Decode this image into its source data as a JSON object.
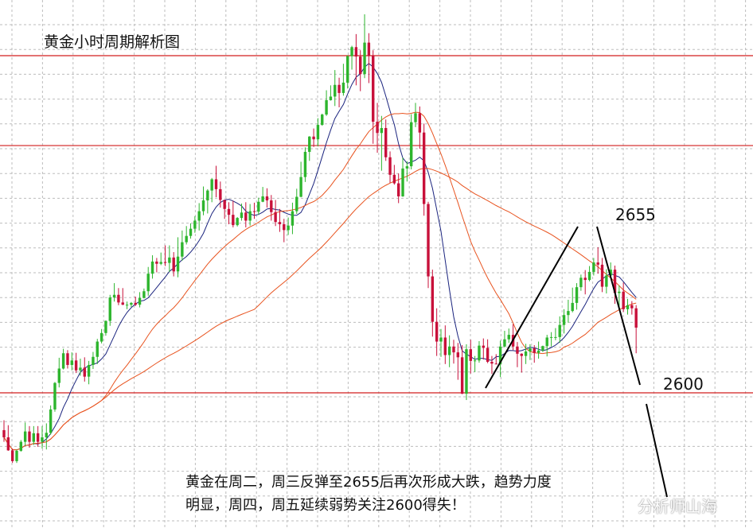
{
  "chart_data": {
    "type": "candlestick",
    "title": "黄金小时周期解析图",
    "levels": [
      {
        "label": "",
        "value": 2675
      },
      {
        "label": "2655",
        "value": 2655
      },
      {
        "label": "2600",
        "value": 2600
      }
    ],
    "ylim": [
      2580,
      2700
    ],
    "grid": true,
    "annotation_line1": "黄金在周二，周三反弹至2655后再次形成大跌，趋势力度",
    "annotation_line2": "明显，周四，周五延续弱势关注2600得失！",
    "watermark": "分析师山海",
    "colors": {
      "up": "#2db52d",
      "down": "#c8103a",
      "level": "#d21e1e",
      "ma_fast": "#1a237e",
      "ma_mid": "#1a237e",
      "ma_slow": "#e8531f",
      "grid": "#bdbdbd"
    },
    "ohlc": [
      [
        2591.7,
        2590.1,
        2593.9,
        2589.1
      ],
      [
        2590.1,
        2587.2,
        2592.8,
        2587.1
      ],
      [
        2587.2,
        2584.8,
        2587.6,
        2584.4
      ],
      [
        2584.8,
        2587.1,
        2587.4,
        2584.4
      ],
      [
        2587.1,
        2589.1,
        2589.5,
        2586.9
      ],
      [
        2589.1,
        2591.4,
        2593.4,
        2588.2
      ],
      [
        2591.4,
        2589.1,
        2592.6,
        2587.8
      ],
      [
        2589.1,
        2591.0,
        2592.6,
        2588.4
      ],
      [
        2591.0,
        2589.1,
        2592.6,
        2588.0
      ],
      [
        2589.1,
        2590.1,
        2592.6,
        2587.6
      ],
      [
        2590.1,
        2591.1,
        2593.2,
        2587.4
      ],
      [
        2591.1,
        2596.3,
        2597.2,
        2590.7
      ],
      [
        2596.3,
        2602.2,
        2602.4,
        2595.8
      ],
      [
        2602.2,
        2605.4,
        2607.8,
        2601.2
      ],
      [
        2605.4,
        2608.8,
        2609.8,
        2605.2
      ],
      [
        2608.8,
        2606.2,
        2609.5,
        2605.4
      ],
      [
        2606.2,
        2607.2,
        2609.0,
        2605.0
      ],
      [
        2607.2,
        2605.0,
        2608.9,
        2604.4
      ],
      [
        2605.0,
        2605.6,
        2607.6,
        2603.8
      ],
      [
        2605.6,
        2603.6,
        2607.9,
        2602.5
      ],
      [
        2603.6,
        2606.2,
        2607.1,
        2601.9
      ],
      [
        2606.2,
        2608.0,
        2609.1,
        2605.3
      ],
      [
        2608.0,
        2611.4,
        2612.0,
        2606.4
      ],
      [
        2611.4,
        2613.3,
        2614.2,
        2611.0
      ],
      [
        2613.3,
        2616.0,
        2616.1,
        2612.7
      ],
      [
        2616.0,
        2621.2,
        2621.8,
        2614.9
      ],
      [
        2621.2,
        2621.8,
        2624.4,
        2620.3
      ],
      [
        2621.8,
        2620.1,
        2623.3,
        2619.5
      ],
      [
        2620.1,
        2619.6,
        2623.3,
        2619.5
      ],
      [
        2619.6,
        2619.6,
        2620.3,
        2618.6
      ],
      [
        2619.6,
        2620.0,
        2620.2,
        2619.1
      ],
      [
        2620.0,
        2619.6,
        2621.4,
        2619.3
      ],
      [
        2619.6,
        2621.1,
        2622.4,
        2619.0
      ],
      [
        2621.1,
        2622.6,
        2623.2,
        2621.0
      ],
      [
        2622.6,
        2626.5,
        2628.0,
        2621.6
      ],
      [
        2626.5,
        2629.2,
        2630.6,
        2625.4
      ],
      [
        2629.2,
        2628.7,
        2630.0,
        2626.8
      ],
      [
        2628.7,
        2629.1,
        2631.2,
        2628.4
      ],
      [
        2629.1,
        2628.9,
        2632.8,
        2628.2
      ],
      [
        2628.9,
        2630.1,
        2632.8,
        2626.9
      ],
      [
        2630.1,
        2627.0,
        2631.3,
        2625.9
      ],
      [
        2627.0,
        2630.3,
        2634.6,
        2625.7
      ],
      [
        2630.3,
        2633.5,
        2636.1,
        2629.4
      ],
      [
        2633.5,
        2634.9,
        2637.1,
        2633.0
      ],
      [
        2634.9,
        2636.5,
        2637.7,
        2634.3
      ],
      [
        2636.5,
        2638.3,
        2639.3,
        2635.6
      ],
      [
        2638.3,
        2640.4,
        2642.2,
        2636.1
      ],
      [
        2640.4,
        2642.8,
        2645.9,
        2639.5
      ],
      [
        2642.8,
        2645.0,
        2645.3,
        2639.9
      ],
      [
        2645.0,
        2647.5,
        2647.8,
        2642.4
      ],
      [
        2647.5,
        2645.3,
        2650.5,
        2643.5
      ],
      [
        2645.3,
        2642.9,
        2647.0,
        2641.2
      ],
      [
        2642.9,
        2640.9,
        2642.9,
        2638.7
      ],
      [
        2640.9,
        2639.6,
        2642.4,
        2637.5
      ],
      [
        2639.6,
        2637.3,
        2642.7,
        2636.8
      ],
      [
        2637.3,
        2638.9,
        2639.1,
        2637.0
      ],
      [
        2638.9,
        2640.1,
        2642.1,
        2638.3
      ],
      [
        2640.1,
        2638.3,
        2642.4,
        2636.8
      ],
      [
        2638.3,
        2640.4,
        2642.0,
        2637.2
      ],
      [
        2640.4,
        2640.3,
        2642.3,
        2638.7
      ],
      [
        2640.3,
        2642.5,
        2643.4,
        2639.6
      ],
      [
        2642.5,
        2643.7,
        2645.8,
        2642.4
      ],
      [
        2643.7,
        2642.8,
        2645.5,
        2641.2
      ],
      [
        2642.8,
        2640.2,
        2644.0,
        2638.3
      ],
      [
        2640.2,
        2638.0,
        2642.9,
        2637.1
      ],
      [
        2638.0,
        2637.5,
        2640.9,
        2635.8
      ],
      [
        2637.5,
        2636.2,
        2638.7,
        2633.5
      ],
      [
        2636.2,
        2637.2,
        2639.0,
        2635.1
      ],
      [
        2637.2,
        2640.4,
        2642.3,
        2635.3
      ],
      [
        2640.4,
        2643.6,
        2645.4,
        2639.8
      ],
      [
        2643.6,
        2648.0,
        2651.4,
        2643.5
      ],
      [
        2648.0,
        2653.6,
        2654.6,
        2646.9
      ],
      [
        2653.6,
        2657.0,
        2657.1,
        2651.6
      ],
      [
        2657.0,
        2656.4,
        2658.8,
        2654.7
      ],
      [
        2656.4,
        2659.6,
        2661.1,
        2654.8
      ],
      [
        2659.6,
        2661.9,
        2662.1,
        2659.4
      ],
      [
        2661.9,
        2665.1,
        2667.3,
        2661.6
      ],
      [
        2665.1,
        2665.9,
        2668.4,
        2665.0
      ],
      [
        2665.9,
        2668.5,
        2671.8,
        2663.8
      ],
      [
        2668.5,
        2666.7,
        2670.1,
        2663.5
      ],
      [
        2666.7,
        2669.0,
        2673.2,
        2666.1
      ],
      [
        2669.0,
        2674.9,
        2675.1,
        2667.7
      ],
      [
        2674.9,
        2676.9,
        2677.2,
        2671.9
      ],
      [
        2676.9,
        2674.8,
        2679.8,
        2668.4
      ],
      [
        2674.8,
        2670.9,
        2676.2,
        2667.1
      ],
      [
        2670.9,
        2677.9,
        2684.2,
        2670.0
      ],
      [
        2677.9,
        2675.0,
        2680.0,
        2668.9
      ],
      [
        2675.0,
        2660.3,
        2676.2,
        2655.4
      ],
      [
        2660.3,
        2657.8,
        2664.5,
        2653.4
      ],
      [
        2657.8,
        2658.9,
        2661.6,
        2649.4
      ],
      [
        2658.9,
        2652.4,
        2660.8,
        2651.6
      ],
      [
        2652.4,
        2648.5,
        2653.7,
        2646.7
      ],
      [
        2648.5,
        2646.6,
        2650.7,
        2646.3
      ],
      [
        2646.6,
        2643.7,
        2648.8,
        2642.2
      ],
      [
        2643.7,
        2649.9,
        2652.3,
        2643.6
      ],
      [
        2649.9,
        2650.4,
        2651.5,
        2647.0
      ],
      [
        2650.4,
        2660.2,
        2662.0,
        2649.7
      ],
      [
        2660.2,
        2662.2,
        2664.5,
        2659.1
      ],
      [
        2662.2,
        2657.9,
        2663.7,
        2654.3
      ],
      [
        2657.9,
        2642.0,
        2659.9,
        2639.4
      ],
      [
        2642.0,
        2625.9,
        2642.5,
        2623.3
      ],
      [
        2625.9,
        2615.8,
        2627.4,
        2612.5
      ],
      [
        2615.8,
        2611.4,
        2618.8,
        2608.2
      ],
      [
        2611.4,
        2612.3,
        2614.2,
        2608.0
      ],
      [
        2612.3,
        2608.4,
        2615.0,
        2606.4
      ],
      [
        2608.4,
        2610.3,
        2612.8,
        2605.7
      ],
      [
        2610.3,
        2609.0,
        2611.8,
        2606.5
      ],
      [
        2609.0,
        2607.9,
        2611.1,
        2602.9
      ],
      [
        2607.9,
        2599.8,
        2610.6,
        2599.7
      ],
      [
        2599.8,
        2609.7,
        2610.8,
        2598.4
      ],
      [
        2609.7,
        2607.1,
        2611.8,
        2604.3
      ],
      [
        2607.1,
        2607.2,
        2608.2,
        2604.6
      ],
      [
        2607.2,
        2610.5,
        2611.5,
        2606.7
      ],
      [
        2610.5,
        2610.0,
        2612.1,
        2607.4
      ],
      [
        2610.0,
        2606.9,
        2611.9,
        2606.6
      ],
      [
        2606.9,
        2606.5,
        2608.2,
        2604.2
      ],
      [
        2606.5,
        2606.4,
        2608.6,
        2606.4
      ],
      [
        2606.4,
        2610.3,
        2611.6,
        2603.5
      ],
      [
        2610.3,
        2611.9,
        2613.8,
        2610.1
      ],
      [
        2611.9,
        2612.9,
        2614.3,
        2611.1
      ],
      [
        2612.9,
        2610.3,
        2615.3,
        2609.5
      ],
      [
        2610.3,
        2608.7,
        2611.3,
        2605.7
      ],
      [
        2608.7,
        2608.2,
        2608.8,
        2604.5
      ],
      [
        2608.2,
        2609.2,
        2610.9,
        2606.4
      ],
      [
        2609.2,
        2609.9,
        2610.8,
        2607.3
      ],
      [
        2609.9,
        2608.9,
        2610.6,
        2606.7
      ],
      [
        2608.9,
        2609.4,
        2611.4,
        2607.6
      ],
      [
        2609.4,
        2610.4,
        2610.5,
        2609.1
      ],
      [
        2610.4,
        2612.3,
        2612.9,
        2608.1
      ],
      [
        2612.3,
        2612.4,
        2613.5,
        2610.3
      ],
      [
        2612.4,
        2612.4,
        2614.4,
        2611.7
      ],
      [
        2612.4,
        2615.1,
        2617.0,
        2611.1
      ],
      [
        2615.1,
        2617.3,
        2618.6,
        2613.2
      ],
      [
        2617.3,
        2618.2,
        2620.7,
        2615.6
      ],
      [
        2618.2,
        2620.0,
        2623.4,
        2617.9
      ],
      [
        2620.0,
        2623.5,
        2624.4,
        2618.5
      ],
      [
        2623.5,
        2625.6,
        2626.3,
        2622.7
      ],
      [
        2625.6,
        2625.1,
        2627.3,
        2621.9
      ],
      [
        2625.1,
        2626.9,
        2628.2,
        2624.8
      ],
      [
        2626.9,
        2629.0,
        2630.0,
        2626.1
      ],
      [
        2629.0,
        2628.5,
        2632.4,
        2626.5
      ],
      [
        2628.5,
        2623.6,
        2630.0,
        2622.4
      ],
      [
        2623.6,
        2626.1,
        2627.5,
        2622.1
      ],
      [
        2626.1,
        2627.4,
        2629.0,
        2625.5
      ],
      [
        2627.4,
        2622.2,
        2628.3,
        2619.8
      ],
      [
        2622.2,
        2622.5,
        2623.9,
        2618.7
      ],
      [
        2622.5,
        2618.6,
        2624.5,
        2618.0
      ],
      [
        2618.6,
        2619.5,
        2620.9,
        2617.4
      ],
      [
        2619.5,
        2618.8,
        2620.4,
        2617.4
      ],
      [
        2618.8,
        2614.5,
        2619.5,
        2608.8
      ]
    ]
  }
}
